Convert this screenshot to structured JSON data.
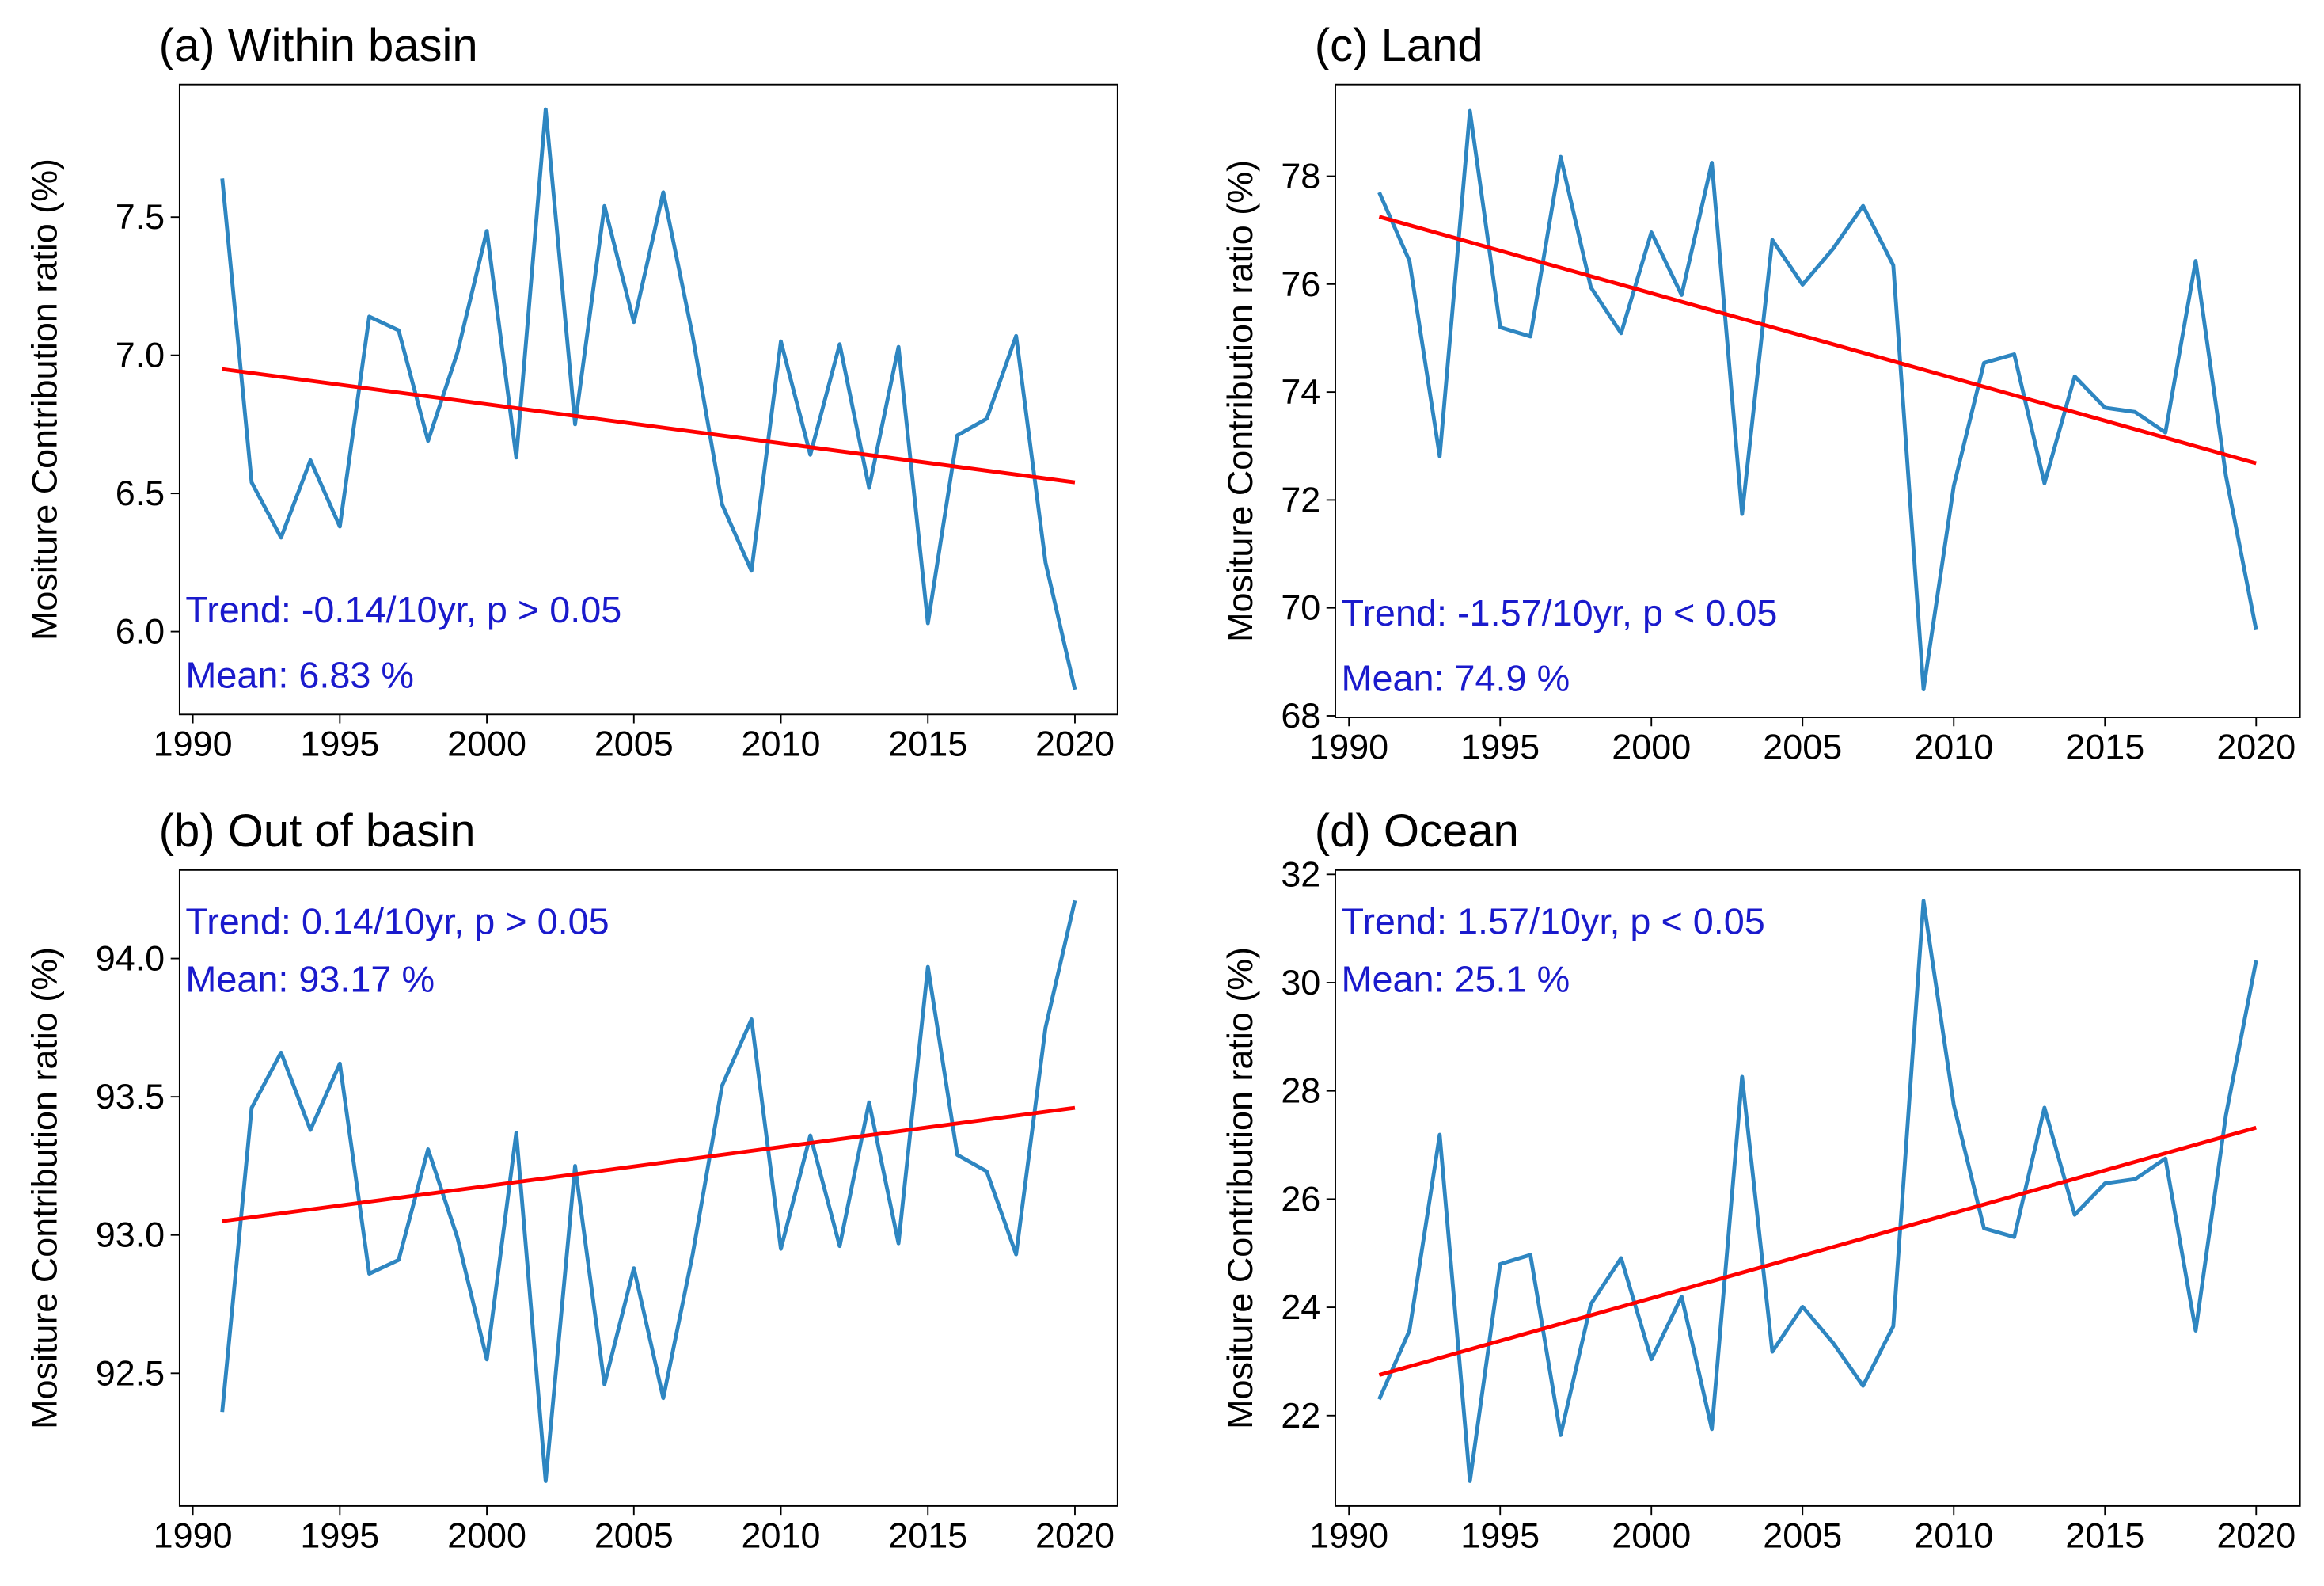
{
  "chart_data": [
    {
      "type": "line",
      "title": "(a) Within basin",
      "y_label": "Mositure Contribution ratio (%)",
      "annotations": [
        "Trend: -0.14/10yr, p > 0.05",
        "Mean: 6.83 %"
      ],
      "x": [
        1991,
        1992,
        1993,
        1994,
        1995,
        1996,
        1997,
        1998,
        1999,
        2000,
        2001,
        2002,
        2003,
        2004,
        2005,
        2006,
        2007,
        2008,
        2009,
        2010,
        2011,
        2012,
        2013,
        2014,
        2015,
        2016,
        2017,
        2018,
        2019,
        2020
      ],
      "xlim": [
        1989.55,
        2021.45
      ],
      "xticks": [
        1990,
        1995,
        2000,
        2005,
        2010,
        2015,
        2020
      ],
      "ylim": [
        5.7,
        7.98
      ],
      "yticks": [
        {
          "value": 6,
          "label": "6.0"
        },
        6.5,
        {
          "value": 7,
          "label": "7.0"
        },
        7.5
      ],
      "series": [
        {
          "color": "#2e86c1",
          "values": [
            7.64,
            6.54,
            6.34,
            6.62,
            6.38,
            7.14,
            7.09,
            6.69,
            7.01,
            7.45,
            6.63,
            7.89,
            6.75,
            7.54,
            7.12,
            7.59,
            7.07,
            6.46,
            6.22,
            7.05,
            6.64,
            7.04,
            6.52,
            7.03,
            6.03,
            6.71,
            6.77,
            7.07,
            6.25,
            5.79
          ]
        },
        {
          "color": "#ff0000",
          "x": [
            1991,
            2020
          ],
          "values": [
            6.95,
            6.54
          ]
        }
      ]
    },
    {
      "type": "line",
      "title": "(b) Out of basin",
      "y_label": "Mositure Contribution ratio (%)",
      "annotations": [
        "Trend: 0.14/10yr, p > 0.05",
        "Mean: 93.17 %"
      ],
      "x": [
        1991,
        1992,
        1993,
        1994,
        1995,
        1996,
        1997,
        1998,
        1999,
        2000,
        2001,
        2002,
        2003,
        2004,
        2005,
        2006,
        2007,
        2008,
        2009,
        2010,
        2011,
        2012,
        2013,
        2014,
        2015,
        2016,
        2017,
        2018,
        2019,
        2020
      ],
      "xlim": [
        1989.55,
        2021.45
      ],
      "xticks": [
        1990,
        1995,
        2000,
        2005,
        2010,
        2015,
        2020
      ],
      "ylim": [
        92.02,
        94.32
      ],
      "yticks": [
        92.5,
        {
          "value": 93,
          "label": "93.0"
        },
        93.5,
        {
          "value": 94,
          "label": "94.0"
        }
      ],
      "series": [
        {
          "color": "#2e86c1",
          "values": [
            92.36,
            93.46,
            93.66,
            93.38,
            93.62,
            92.86,
            92.91,
            93.31,
            92.99,
            92.55,
            93.37,
            92.11,
            93.25,
            92.46,
            92.88,
            92.41,
            92.93,
            93.54,
            93.78,
            92.95,
            93.36,
            92.96,
            93.48,
            92.97,
            93.97,
            93.29,
            93.23,
            92.93,
            93.75,
            94.21
          ]
        },
        {
          "color": "#ff0000",
          "x": [
            1991,
            2020
          ],
          "values": [
            93.05,
            93.46
          ]
        }
      ]
    },
    {
      "type": "line",
      "title": "(c) Land",
      "y_label": "Mositure Contribution ratio (%)",
      "annotations": [
        "Trend: -1.57/10yr, p < 0.05",
        "Mean: 74.9 %"
      ],
      "x": [
        1991,
        1992,
        1993,
        1994,
        1995,
        1996,
        1997,
        1998,
        1999,
        2000,
        2001,
        2002,
        2003,
        2004,
        2005,
        2006,
        2007,
        2008,
        2009,
        2010,
        2011,
        2012,
        2013,
        2014,
        2015,
        2016,
        2017,
        2018,
        2019,
        2020
      ],
      "xlim": [
        1989.55,
        2021.45
      ],
      "xticks": [
        1990,
        1995,
        2000,
        2005,
        2010,
        2015,
        2020
      ],
      "ylim": [
        67.97,
        79.7
      ],
      "yticks": [
        68,
        70,
        72,
        74,
        76,
        78
      ],
      "series": [
        {
          "color": "#2e86c1",
          "values": [
            77.7,
            76.43,
            72.81,
            79.21,
            75.2,
            75.03,
            78.36,
            75.94,
            75.09,
            76.96,
            75.8,
            78.25,
            71.74,
            76.82,
            75.99,
            76.65,
            77.45,
            76.35,
            68.49,
            72.26,
            74.54,
            74.7,
            72.31,
            74.29,
            73.71,
            73.63,
            73.25,
            76.43,
            72.45,
            69.59
          ]
        },
        {
          "color": "#ff0000",
          "x": [
            1991,
            2020
          ],
          "values": [
            77.25,
            72.68
          ]
        }
      ]
    },
    {
      "type": "line",
      "title": "(d) Ocean",
      "y_label": "Mositure Contribution ratio (%)",
      "annotations": [
        "Trend: 1.57/10yr, p < 0.05",
        "Mean: 25.1 %"
      ],
      "x": [
        1991,
        1992,
        1993,
        1994,
        1995,
        1996,
        1997,
        1998,
        1999,
        2000,
        2001,
        2002,
        2003,
        2004,
        2005,
        2006,
        2007,
        2008,
        2009,
        2010,
        2011,
        2012,
        2013,
        2014,
        2015,
        2016,
        2017,
        2018,
        2019,
        2020
      ],
      "xlim": [
        1989.55,
        2021.45
      ],
      "xticks": [
        1990,
        1995,
        2000,
        2005,
        2010,
        2015,
        2020
      ],
      "ylim": [
        20.33,
        32.08
      ],
      "yticks": [
        22,
        24,
        26,
        28,
        30,
        32
      ],
      "series": [
        {
          "color": "#2e86c1",
          "values": [
            22.3,
            23.57,
            27.19,
            20.79,
            24.8,
            24.97,
            21.64,
            24.06,
            24.91,
            23.04,
            24.2,
            21.75,
            28.26,
            23.18,
            24.01,
            23.35,
            22.55,
            23.65,
            31.51,
            27.74,
            25.46,
            25.3,
            27.69,
            25.71,
            26.29,
            26.37,
            26.75,
            23.57,
            27.55,
            30.41
          ]
        },
        {
          "color": "#ff0000",
          "x": [
            1991,
            2020
          ],
          "values": [
            22.75,
            27.32
          ]
        }
      ]
    }
  ]
}
